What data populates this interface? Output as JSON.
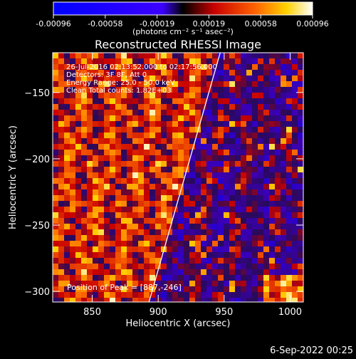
{
  "chart_data": {
    "type": "heatmap",
    "title": "Reconstructed RHESSI Image",
    "xlabel": "Heliocentric X (arcsec)",
    "ylabel": "Heliocentric Y (arcsec)",
    "xlim": [
      820,
      1010
    ],
    "ylim": [
      -308,
      -120
    ],
    "x_ticks": [
      850,
      900,
      950,
      1000
    ],
    "y_ticks": [
      -150,
      -200,
      -250,
      -300
    ],
    "colorbar": {
      "ticks": [
        "-0.00096",
        "-0.00058",
        "-0.00019",
        "0.00019",
        "0.00058",
        "0.00096"
      ],
      "range": [
        -0.00096,
        0.00096
      ],
      "units_label": "(photons cm⁻² s⁻¹ asec⁻²)"
    },
    "annotations": [
      "26-Jul-2016 02:13:52.000 to 02:17:56.000",
      "Detectors: 3F 8F, Att 0",
      "Energy Range: 25.0 - 50.0 keV",
      "Clean     Total counts: 1.82E+03"
    ],
    "peak_label": "Position of Peak = [887,-246]",
    "limb_line": {
      "x": [
        893,
        947
      ],
      "y": [
        -308,
        -120
      ]
    },
    "footer_date": "6-Sep-2022 00:25"
  }
}
